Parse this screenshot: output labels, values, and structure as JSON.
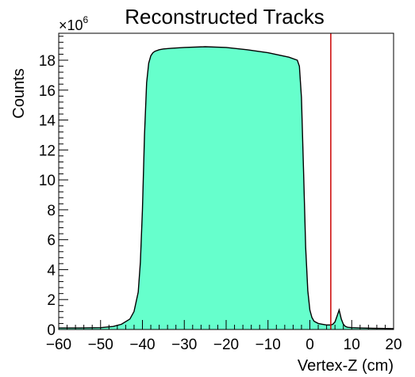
{
  "chart_data": {
    "type": "area",
    "title": "Reconstructed Tracks",
    "xlabel": "Vertex-Z (cm)",
    "ylabel": "Counts",
    "y_multiplier": "×10",
    "y_multiplier_exp": "6",
    "xlim": [
      -60,
      20
    ],
    "ylim": [
      0,
      19.8
    ],
    "x_ticks": [
      -60,
      -50,
      -40,
      -30,
      -20,
      -10,
      0,
      10,
      20
    ],
    "x_tick_labels": [
      "−60",
      "−50",
      "−40",
      "−30",
      "−20",
      "−10",
      "0",
      "10",
      "20"
    ],
    "y_ticks": [
      0,
      2,
      4,
      6,
      8,
      10,
      12,
      14,
      16,
      18
    ],
    "y_tick_labels": [
      "0",
      "2",
      "4",
      "6",
      "8",
      "10",
      "12",
      "14",
      "16",
      "18"
    ],
    "grid": false,
    "fill_color": "#66ffcc",
    "line_color": "#000000",
    "cut_line": {
      "x": 5,
      "color": "#cc0000"
    },
    "series": [
      {
        "x": [
          -60,
          -55,
          -50,
          -47,
          -45,
          -43,
          -42,
          -41,
          -40.5,
          -40,
          -39.5,
          -39,
          -38.5,
          -38,
          -37.5,
          -37,
          -36,
          -35,
          -33,
          -30,
          -25,
          -20,
          -15,
          -10,
          -5,
          -3,
          -2.5,
          -2,
          -1.5,
          -1,
          -0.5,
          0,
          0.5,
          1,
          2,
          3,
          4,
          5,
          5.5,
          6,
          6.5,
          7,
          7.5,
          8,
          8.5,
          9,
          10,
          12,
          15,
          18,
          20
        ],
        "values": [
          0.1,
          0.1,
          0.12,
          0.2,
          0.35,
          0.7,
          1.2,
          2.5,
          4.5,
          8.0,
          13.0,
          16.5,
          17.8,
          18.3,
          18.5,
          18.6,
          18.7,
          18.75,
          18.8,
          18.85,
          18.9,
          18.85,
          18.7,
          18.5,
          18.2,
          18.0,
          17.6,
          15.5,
          10.5,
          5.5,
          2.6,
          1.3,
          0.8,
          0.55,
          0.4,
          0.35,
          0.3,
          0.3,
          0.35,
          0.5,
          0.9,
          1.3,
          0.7,
          0.35,
          0.2,
          0.15,
          0.12,
          0.1,
          0.08,
          0.07,
          0.06
        ]
      }
    ]
  }
}
